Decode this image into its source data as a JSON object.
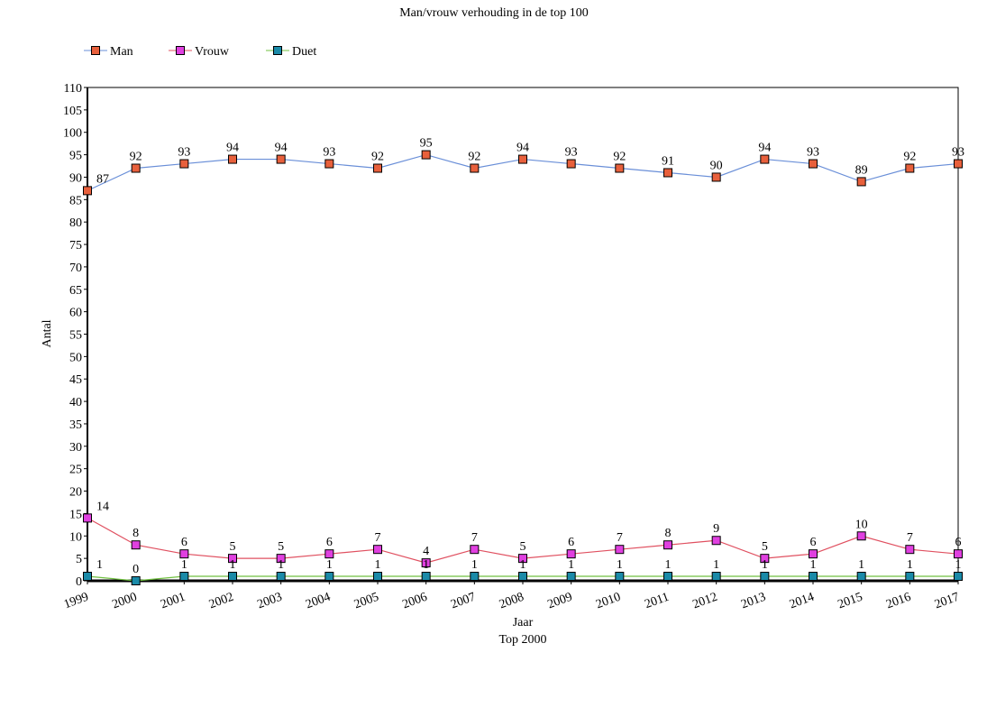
{
  "chart_data": {
    "type": "line",
    "title": "Man/vrouw verhouding in de top 100",
    "xlabel": "Jaar",
    "xlabel2": "Top 2000",
    "ylabel": "Antal",
    "ylim": [
      0,
      110
    ],
    "ytick_step": 5,
    "grid": false,
    "legend_position": "top-left",
    "categories": [
      "1999",
      "2000",
      "2001",
      "2002",
      "2003",
      "2004",
      "2005",
      "2006",
      "2007",
      "2008",
      "2009",
      "2010",
      "2011",
      "2012",
      "2013",
      "2014",
      "2015",
      "2016",
      "2017"
    ],
    "series": [
      {
        "name": "Man",
        "line_color": "#6a8fd8",
        "marker_color": "#e8603c",
        "values": [
          87,
          92,
          93,
          94,
          94,
          93,
          92,
          95,
          92,
          94,
          93,
          92,
          91,
          90,
          94,
          93,
          89,
          92,
          93
        ]
      },
      {
        "name": "Vrouw",
        "line_color": "#e05060",
        "marker_color": "#e040e0",
        "values": [
          14,
          8,
          6,
          5,
          5,
          6,
          7,
          4,
          7,
          5,
          6,
          7,
          8,
          9,
          5,
          6,
          10,
          7,
          6
        ]
      },
      {
        "name": "Duet",
        "line_color": "#70c040",
        "marker_color": "#1a8aa8",
        "values": [
          1,
          0,
          1,
          1,
          1,
          1,
          1,
          1,
          1,
          1,
          1,
          1,
          1,
          1,
          1,
          1,
          1,
          1,
          1
        ]
      }
    ]
  }
}
